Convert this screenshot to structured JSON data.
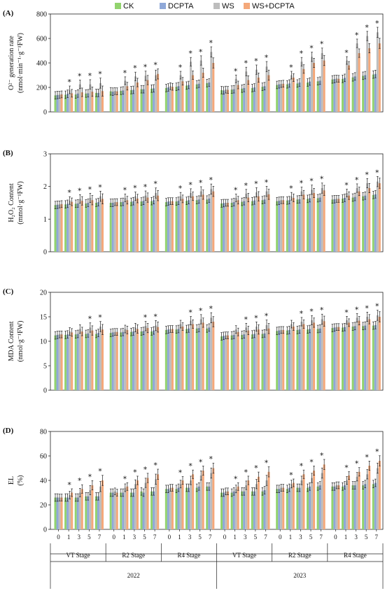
{
  "legend": [
    {
      "name": "CK",
      "color": "#92d36e"
    },
    {
      "name": "DCPTA",
      "color": "#8fa8d8"
    },
    {
      "name": "WS",
      "color": "#bdbdbd"
    },
    {
      "name": "WS+DCPTA",
      "color": "#f4a87a"
    }
  ],
  "x_axis": {
    "days": [
      "0",
      "1",
      "3",
      "5",
      "7"
    ],
    "stages": [
      "VT Stage",
      "R2 Stage",
      "R4 Stage",
      "VT Stage",
      "R2 Stage",
      "R4 Stage"
    ],
    "years": [
      "2022",
      "2023"
    ]
  },
  "chart_data": [
    {
      "type": "bar",
      "panel": "(A)",
      "ylabel_main": "O²⁻ generation rate",
      "ylabel_unit": "(nmol·min⁻¹·g⁻¹FW)",
      "ylim": [
        0,
        800
      ],
      "yticks": [
        "0",
        "200",
        "400",
        "600",
        "800"
      ],
      "series": [
        {
          "name": "CK",
          "values": [
            [
              135,
              140,
              142,
              150,
              155
            ],
            [
              168,
              172,
              178,
              185,
              190
            ],
            [
              195,
              205,
              215,
              225,
              235
            ],
            [
              178,
              182,
              190,
              195,
              205
            ],
            [
              220,
              225,
              232,
              240,
              250
            ],
            [
              265,
              270,
              282,
              295,
              305
            ]
          ]
        },
        {
          "name": "DCPTA",
          "values": [
            [
              138,
              148,
              150,
              152,
              155
            ],
            [
              165,
              175,
              180,
              185,
              192
            ],
            [
              200,
              210,
              220,
              230,
              240
            ],
            [
              175,
              185,
              195,
              200,
              210
            ],
            [
              225,
              232,
              240,
              248,
              255
            ],
            [
              268,
              278,
              290,
              300,
              310
            ]
          ]
        },
        {
          "name": "WS",
          "values": [
            [
              140,
              180,
              225,
              225,
              235
            ],
            [
              170,
              255,
              290,
              295,
              300
            ],
            [
              210,
              300,
              410,
              420,
              490
            ],
            [
              182,
              270,
              330,
              345,
              370
            ],
            [
              228,
              300,
              410,
              450,
              480
            ],
            [
              272,
              420,
              560,
              620,
              650
            ]
          ]
        },
        {
          "name": "WS+DCPTA",
          "values": [
            [
              143,
              152,
              160,
              165,
              170
            ],
            [
              168,
              210,
              240,
              260,
              310
            ],
            [
              205,
              250,
              300,
              320,
              400
            ],
            [
              180,
              220,
              260,
              280,
              300
            ],
            [
              230,
              280,
              350,
              400,
              420
            ],
            [
              270,
              380,
              480,
              520,
              560
            ]
          ]
        }
      ],
      "significant": [
        [
          0,
          1,
          1,
          1,
          1
        ],
        [
          0,
          1,
          1,
          1,
          1
        ],
        [
          0,
          1,
          1,
          1,
          1
        ],
        [
          0,
          1,
          1,
          1,
          1
        ],
        [
          0,
          1,
          1,
          1,
          1
        ],
        [
          0,
          1,
          1,
          1,
          1
        ]
      ]
    },
    {
      "type": "bar",
      "panel": "(B)",
      "ylabel_main": "H₂O₂ Content",
      "ylabel_unit": "(mmol·g⁻¹FW)",
      "ylim": [
        0,
        3
      ],
      "yticks": [
        "0",
        "1",
        "2",
        "3"
      ],
      "series": [
        {
          "name": "CK",
          "values": [
            [
              1.43,
              1.45,
              1.47,
              1.48,
              1.5
            ],
            [
              1.5,
              1.52,
              1.53,
              1.54,
              1.55
            ],
            [
              1.52,
              1.54,
              1.56,
              1.58,
              1.6
            ],
            [
              1.48,
              1.5,
              1.53,
              1.55,
              1.58
            ],
            [
              1.55,
              1.57,
              1.6,
              1.62,
              1.64
            ],
            [
              1.6,
              1.63,
              1.66,
              1.7,
              1.74
            ]
          ]
        },
        {
          "name": "DCPTA",
          "values": [
            [
              1.44,
              1.47,
              1.48,
              1.5,
              1.52
            ],
            [
              1.5,
              1.53,
              1.55,
              1.56,
              1.58
            ],
            [
              1.54,
              1.56,
              1.58,
              1.6,
              1.63
            ],
            [
              1.49,
              1.52,
              1.55,
              1.57,
              1.6
            ],
            [
              1.56,
              1.58,
              1.61,
              1.64,
              1.66
            ],
            [
              1.61,
              1.65,
              1.68,
              1.72,
              1.76
            ]
          ]
        },
        {
          "name": "WS",
          "values": [
            [
              1.45,
              1.57,
              1.62,
              1.65,
              1.7
            ],
            [
              1.52,
              1.65,
              1.7,
              1.72,
              1.8
            ],
            [
              1.55,
              1.7,
              1.8,
              1.85,
              1.92
            ],
            [
              1.5,
              1.65,
              1.78,
              1.82,
              1.85
            ],
            [
              1.58,
              1.7,
              1.85,
              1.9,
              1.95
            ],
            [
              1.62,
              1.8,
              1.95,
              2.1,
              2.15
            ]
          ]
        },
        {
          "name": "WS+DCPTA",
          "values": [
            [
              1.46,
              1.53,
              1.56,
              1.58,
              1.62
            ],
            [
              1.52,
              1.58,
              1.63,
              1.66,
              1.72
            ],
            [
              1.55,
              1.62,
              1.7,
              1.75,
              1.85
            ],
            [
              1.5,
              1.58,
              1.66,
              1.7,
              1.76
            ],
            [
              1.58,
              1.65,
              1.75,
              1.8,
              1.88
            ],
            [
              1.62,
              1.72,
              1.85,
              1.95,
              2.1
            ]
          ]
        }
      ],
      "significant": [
        [
          0,
          1,
          1,
          1,
          1
        ],
        [
          0,
          1,
          1,
          1,
          1
        ],
        [
          0,
          1,
          1,
          1,
          1
        ],
        [
          0,
          1,
          1,
          1,
          1
        ],
        [
          0,
          1,
          1,
          1,
          1
        ],
        [
          0,
          1,
          1,
          1,
          1
        ]
      ]
    },
    {
      "type": "bar",
      "panel": "(C)",
      "ylabel_main": "MDA Content",
      "ylabel_unit": "(nmol·g⁻¹FW)",
      "ylim": [
        0,
        20
      ],
      "yticks": [
        "0",
        "5",
        "10",
        "15",
        "20"
      ],
      "series": [
        {
          "name": "CK",
          "values": [
            [
              11.2,
              11.3,
              11.4,
              11.5,
              11.5
            ],
            [
              11.7,
              11.8,
              11.9,
              12.0,
              12.0
            ],
            [
              12.3,
              12.4,
              12.5,
              12.6,
              12.6
            ],
            [
              11.0,
              11.2,
              11.3,
              11.4,
              11.5
            ],
            [
              12.1,
              12.2,
              12.3,
              12.4,
              12.5
            ],
            [
              12.7,
              12.8,
              13.0,
              13.1,
              13.2
            ]
          ]
        },
        {
          "name": "DCPTA",
          "values": [
            [
              11.3,
              11.4,
              11.5,
              11.6,
              11.7
            ],
            [
              11.8,
              11.9,
              12.0,
              12.1,
              12.2
            ],
            [
              12.4,
              12.5,
              12.6,
              12.7,
              12.8
            ],
            [
              11.1,
              11.3,
              11.4,
              11.5,
              11.6
            ],
            [
              12.2,
              12.3,
              12.4,
              12.5,
              12.6
            ],
            [
              12.8,
              12.9,
              13.1,
              13.2,
              13.3
            ]
          ]
        },
        {
          "name": "WS",
          "values": [
            [
              11.4,
              12.0,
              12.5,
              12.8,
              13.0
            ],
            [
              11.9,
              12.5,
              12.8,
              13.1,
              13.2
            ],
            [
              12.5,
              13.5,
              14.2,
              14.5,
              14.8
            ],
            [
              11.2,
              12.4,
              12.8,
              13.0,
              13.3
            ],
            [
              12.3,
              13.5,
              14.0,
              14.3,
              14.5
            ],
            [
              12.9,
              14.3,
              14.8,
              15.0,
              15.3
            ]
          ]
        },
        {
          "name": "WS+DCPTA",
          "values": [
            [
              11.4,
              11.8,
              12.0,
              12.2,
              12.4
            ],
            [
              11.9,
              12.3,
              12.5,
              12.7,
              12.9
            ],
            [
              12.5,
              13.0,
              13.5,
              13.8,
              14.0
            ],
            [
              11.2,
              11.9,
              12.2,
              12.4,
              12.6
            ],
            [
              12.3,
              13.0,
              13.5,
              13.8,
              14.1
            ],
            [
              12.9,
              13.8,
              14.2,
              14.5,
              15.0
            ]
          ]
        }
      ],
      "significant": [
        [
          0,
          0,
          0,
          1,
          1
        ],
        [
          0,
          0,
          0,
          1,
          1
        ],
        [
          0,
          0,
          1,
          1,
          1
        ],
        [
          0,
          0,
          1,
          1,
          1
        ],
        [
          0,
          0,
          1,
          1,
          1
        ],
        [
          0,
          1,
          1,
          1,
          1
        ]
      ]
    },
    {
      "type": "bar",
      "panel": "(D)",
      "ylabel_main": "EL",
      "ylabel_unit": "(%)",
      "ylim": [
        0,
        80
      ],
      "yticks": [
        "0",
        "20",
        "40",
        "60",
        "80"
      ],
      "series": [
        {
          "name": "CK",
          "values": [
            [
              26,
              26,
              26,
              27,
              27
            ],
            [
              30,
              30,
              30,
              31,
              31
            ],
            [
              33,
              33,
              34,
              34,
              35
            ],
            [
              30,
              30,
              31,
              31,
              31
            ],
            [
              33,
              33,
              34,
              34,
              35
            ],
            [
              35,
              35,
              36,
              36,
              37
            ]
          ]
        },
        {
          "name": "DCPTA",
          "values": [
            [
              26,
              26,
              26,
              27,
              27
            ],
            [
              30,
              30,
              30,
              30,
              31
            ],
            [
              33,
              34,
              34,
              35,
              35
            ],
            [
              30,
              31,
              31,
              31,
              32
            ],
            [
              33,
              34,
              34,
              35,
              36
            ],
            [
              35,
              36,
              36,
              37,
              38
            ]
          ]
        },
        {
          "name": "WS",
          "values": [
            [
              26,
              28,
              30,
              32,
              35
            ],
            [
              31,
              34,
              37,
              38,
              41
            ],
            [
              34,
              37,
              40,
              44,
              46
            ],
            [
              31,
              33,
              36,
              37,
              40
            ],
            [
              34,
              37,
              40,
              42,
              46
            ],
            [
              36,
              40,
              43,
              45,
              50
            ]
          ]
        },
        {
          "name": "WS+DCPTA",
          "values": [
            [
              26,
              30,
              33,
              36,
              40
            ],
            [
              30,
              35,
              40,
              42,
              45
            ],
            [
              34,
              40,
              45,
              48,
              50
            ],
            [
              31,
              35,
              40,
              43,
              47
            ],
            [
              34,
              38,
              45,
              48,
              53
            ],
            [
              36,
              44,
              47,
              52,
              56
            ]
          ]
        }
      ],
      "significant": [
        [
          0,
          1,
          1,
          1,
          1
        ],
        [
          0,
          1,
          1,
          1,
          1
        ],
        [
          0,
          1,
          1,
          1,
          1
        ],
        [
          0,
          1,
          1,
          1,
          1
        ],
        [
          0,
          1,
          1,
          1,
          1
        ],
        [
          0,
          1,
          1,
          1,
          1
        ]
      ]
    }
  ]
}
